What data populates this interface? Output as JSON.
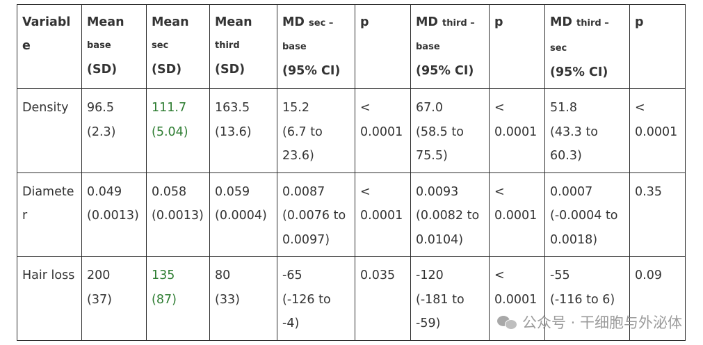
{
  "headers": [
    {
      "main": "Variable",
      "sub": "",
      "tail": ""
    },
    {
      "main": "Mean",
      "sub": "base",
      "tail": "(SD)"
    },
    {
      "main": "Mean",
      "sub": "sec",
      "tail": "(SD)"
    },
    {
      "main": "Mean",
      "sub": "third",
      "tail": "(SD)"
    },
    {
      "main": "MD",
      "sub": "sec –",
      "sub2": "base",
      "tail": "(95% CI)"
    },
    {
      "main": "p",
      "sub": "",
      "tail": ""
    },
    {
      "main": "MD",
      "sub": "third –",
      "sub2": "base",
      "tail": "(95% CI)"
    },
    {
      "main": "p",
      "sub": "",
      "tail": ""
    },
    {
      "main": "MD",
      "sub": "third – sec",
      "tail": "(95% CI)"
    },
    {
      "main": "p",
      "sub": "",
      "tail": ""
    }
  ],
  "rows": [
    {
      "variable": "Density",
      "mean_base": [
        "96.5",
        "(2.3)"
      ],
      "mean_sec": [
        "111.7",
        "(5.04)"
      ],
      "mean_third": [
        "163.5",
        "(13.6)"
      ],
      "md_sec_base": [
        "15.2",
        "(6.7 to",
        "23.6)"
      ],
      "p1": [
        "<",
        "0.0001"
      ],
      "md_third_base": [
        "67.0",
        "(58.5 to",
        "75.5)"
      ],
      "p2": [
        "<",
        "0.0001"
      ],
      "md_third_sec": [
        "51.8",
        "(43.3 to",
        "60.3)"
      ],
      "p3": [
        "<",
        "0.0001"
      ]
    },
    {
      "variable": "Diameter",
      "mean_base": [
        "0.049",
        "(0.0013)"
      ],
      "mean_sec": [
        "0.058",
        "(0.0013)"
      ],
      "mean_third": [
        "0.059",
        "(0.0004)"
      ],
      "md_sec_base": [
        "0.0087",
        "(0.0076 to",
        "0.0097)"
      ],
      "p1": [
        "<",
        "0.0001"
      ],
      "md_third_base": [
        "0.0093",
        "(0.0082 to",
        "0.0104)"
      ],
      "p2": [
        "<",
        "0.0001"
      ],
      "md_third_sec": [
        "0.0007",
        "(-0.0004 to",
        "0.0018)"
      ],
      "p3": [
        "0.35"
      ]
    },
    {
      "variable": "Hair loss",
      "mean_base": [
        "200",
        "(37)"
      ],
      "mean_sec": [
        "135",
        "(87)"
      ],
      "mean_third": [
        "80",
        "(33)"
      ],
      "md_sec_base": [
        "-65",
        "(-126 to",
        "-4)"
      ],
      "p1": [
        "0.035"
      ],
      "md_third_base": [
        "-120",
        "(-181 to",
        "-59)"
      ],
      "p2": [
        "<",
        "0.0001"
      ],
      "md_third_sec": [
        "-55",
        "(-116 to 6)"
      ],
      "p3": [
        "0.09"
      ]
    }
  ],
  "watermark": {
    "text": "公众号 · 干细胞与外泌体",
    "icon": "wechat-icon",
    "color": "#8a8a8a"
  },
  "colors": {
    "text": "#333333",
    "border": "#2b2b2b",
    "accent_green": "#2e7d32"
  }
}
